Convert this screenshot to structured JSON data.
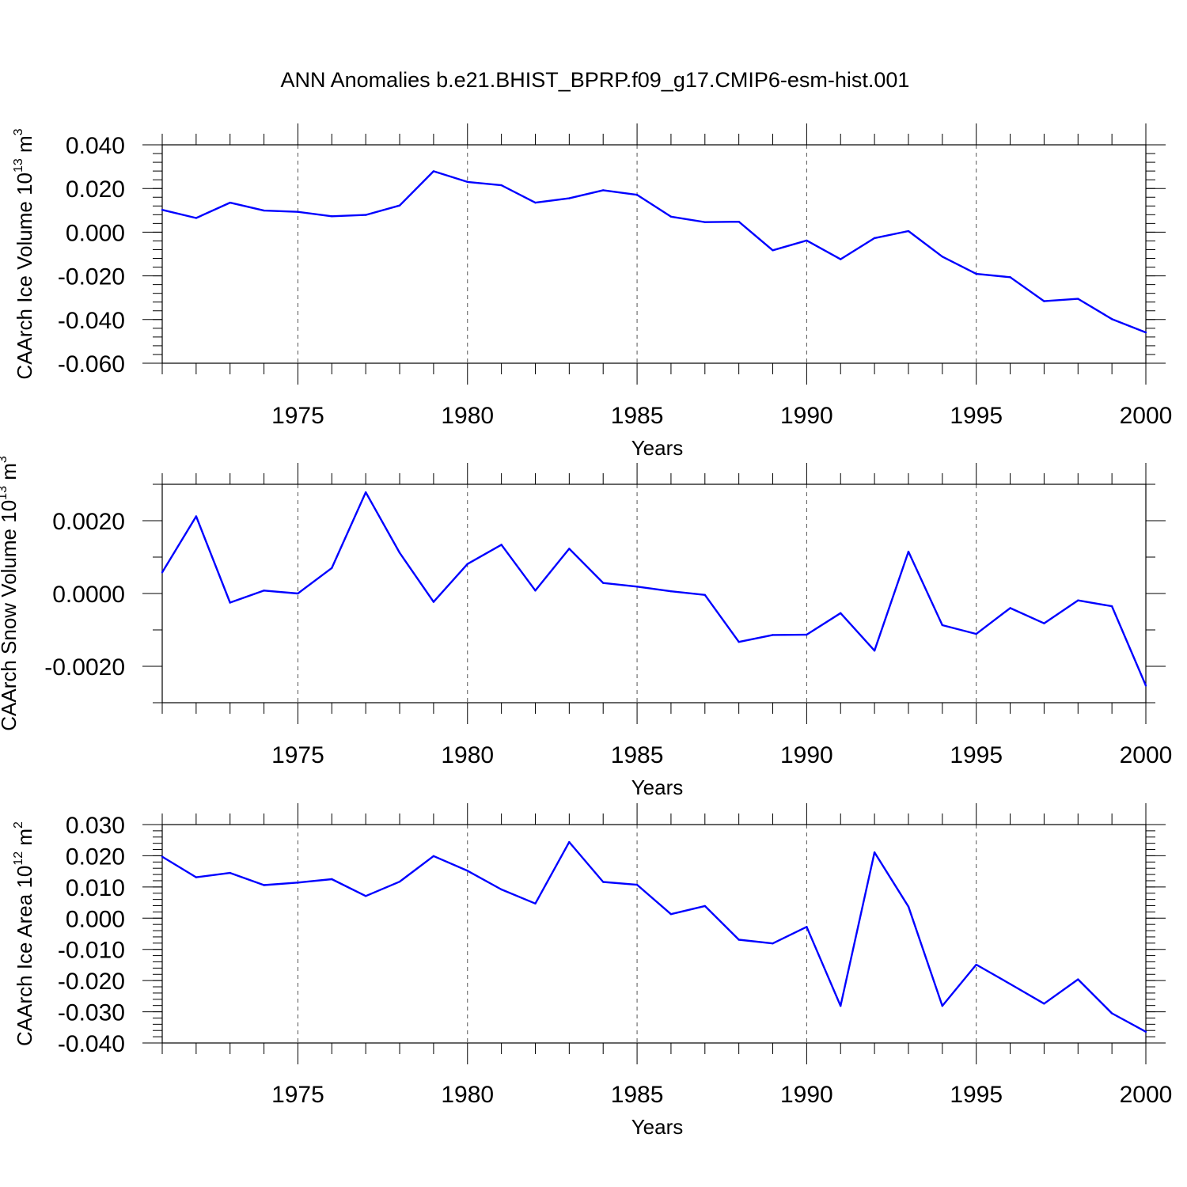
{
  "title": "ANN Anomalies b.e21.BHIST_BPRP.f09_g17.CMIP6-esm-hist.001",
  "colors": {
    "line": "#0000ff",
    "axis": "#000000",
    "grid": "#555555"
  },
  "chart_data": [
    {
      "type": "line",
      "ylabel": "CAArch Ice Volume 10",
      "ylabel_exp": "13",
      "ylabel_unit": "m",
      "ylabel_unit_exp": "3",
      "xlabel": "Years",
      "xlim": [
        1971,
        2000
      ],
      "ylim": [
        -0.06,
        0.04
      ],
      "yticks": [
        0.04,
        0.02,
        0.0,
        -0.02,
        -0.04,
        -0.06
      ],
      "ytick_labels": [
        "0.040",
        "0.020",
        "0.000",
        "-0.020",
        "-0.040",
        "-0.060"
      ],
      "yminor_step": 0.004,
      "xticks": [
        1975,
        1980,
        1985,
        1990,
        1995,
        2000
      ],
      "xtick_labels": [
        "1975",
        "1980",
        "1985",
        "1990",
        "1995",
        "2000"
      ],
      "x": [
        1971,
        1972,
        1973,
        1974,
        1975,
        1976,
        1977,
        1978,
        1979,
        1980,
        1981,
        1982,
        1983,
        1984,
        1985,
        1986,
        1987,
        1988,
        1989,
        1990,
        1991,
        1992,
        1993,
        1994,
        1995,
        1996,
        1997,
        1998,
        1999,
        2000
      ],
      "values": [
        0.0102,
        0.0065,
        0.0135,
        0.0099,
        0.0093,
        0.0073,
        0.0079,
        0.0122,
        0.0279,
        0.023,
        0.0215,
        0.0135,
        0.0155,
        0.0192,
        0.0171,
        0.0071,
        0.0046,
        0.0048,
        -0.0083,
        -0.0038,
        -0.0124,
        -0.0027,
        0.0005,
        -0.0112,
        -0.0191,
        -0.0206,
        -0.0316,
        -0.0305,
        -0.0398,
        -0.0459
      ]
    },
    {
      "type": "line",
      "ylabel": "CAArch Snow Volume 10",
      "ylabel_exp": "13",
      "ylabel_unit": "m",
      "ylabel_unit_exp": "3",
      "xlabel": "Years",
      "xlim": [
        1971,
        2000
      ],
      "ylim": [
        -0.003,
        0.003
      ],
      "yticks": [
        0.002,
        0.0,
        -0.002
      ],
      "ytick_labels": [
        "0.0020",
        "0.0000",
        "-0.0020"
      ],
      "yminor_step": 0.001,
      "xticks": [
        1975,
        1980,
        1985,
        1990,
        1995,
        2000
      ],
      "xtick_labels": [
        "1975",
        "1980",
        "1985",
        "1990",
        "1995",
        "2000"
      ],
      "x": [
        1971,
        1972,
        1973,
        1974,
        1975,
        1976,
        1977,
        1978,
        1979,
        1980,
        1981,
        1982,
        1983,
        1984,
        1985,
        1986,
        1987,
        1988,
        1989,
        1990,
        1991,
        1992,
        1993,
        1994,
        1995,
        1996,
        1997,
        1998,
        1999,
        2000
      ],
      "values": [
        0.00058,
        0.00212,
        -0.00025,
        8e-05,
        0.0,
        0.0007,
        0.00278,
        0.00112,
        -0.00023,
        0.00081,
        0.00134,
        8e-05,
        0.00123,
        0.00029,
        0.00019,
        6e-05,
        -4e-05,
        -0.00133,
        -0.00114,
        -0.00113,
        -0.00054,
        -0.00157,
        0.00115,
        -0.00087,
        -0.00111,
        -0.0004,
        -0.00082,
        -0.00019,
        -0.00035,
        -0.00253
      ]
    },
    {
      "type": "line",
      "ylabel": "CAArch Ice Area 10",
      "ylabel_exp": "12",
      "ylabel_unit": "m",
      "ylabel_unit_exp": "2",
      "xlabel": "Years",
      "xlim": [
        1971,
        2000
      ],
      "ylim": [
        -0.04,
        0.03
      ],
      "yticks": [
        0.03,
        0.02,
        0.01,
        0.0,
        -0.01,
        -0.02,
        -0.03,
        -0.04
      ],
      "ytick_labels": [
        "0.030",
        "0.020",
        "0.010",
        "0.000",
        "-0.010",
        "-0.020",
        "-0.030",
        "-0.040"
      ],
      "yminor_step": 0.002,
      "xticks": [
        1975,
        1980,
        1985,
        1990,
        1995,
        2000
      ],
      "xtick_labels": [
        "1975",
        "1980",
        "1985",
        "1990",
        "1995",
        "2000"
      ],
      "x": [
        1971,
        1972,
        1973,
        1974,
        1975,
        1976,
        1977,
        1978,
        1979,
        1980,
        1981,
        1982,
        1983,
        1984,
        1985,
        1986,
        1987,
        1988,
        1989,
        1990,
        1991,
        1992,
        1993,
        1994,
        1995,
        1996,
        1997,
        1998,
        1999,
        2000
      ],
      "values": [
        0.0197,
        0.0131,
        0.0145,
        0.0106,
        0.0114,
        0.0125,
        0.0071,
        0.0117,
        0.0199,
        0.0152,
        0.0092,
        0.0047,
        0.0244,
        0.0116,
        0.0107,
        0.0013,
        0.0039,
        -0.0069,
        -0.0081,
        -0.0028,
        -0.0281,
        0.0211,
        0.0037,
        -0.0281,
        -0.0149,
        -0.0211,
        -0.0274,
        -0.0196,
        -0.0305,
        -0.0364
      ]
    }
  ]
}
